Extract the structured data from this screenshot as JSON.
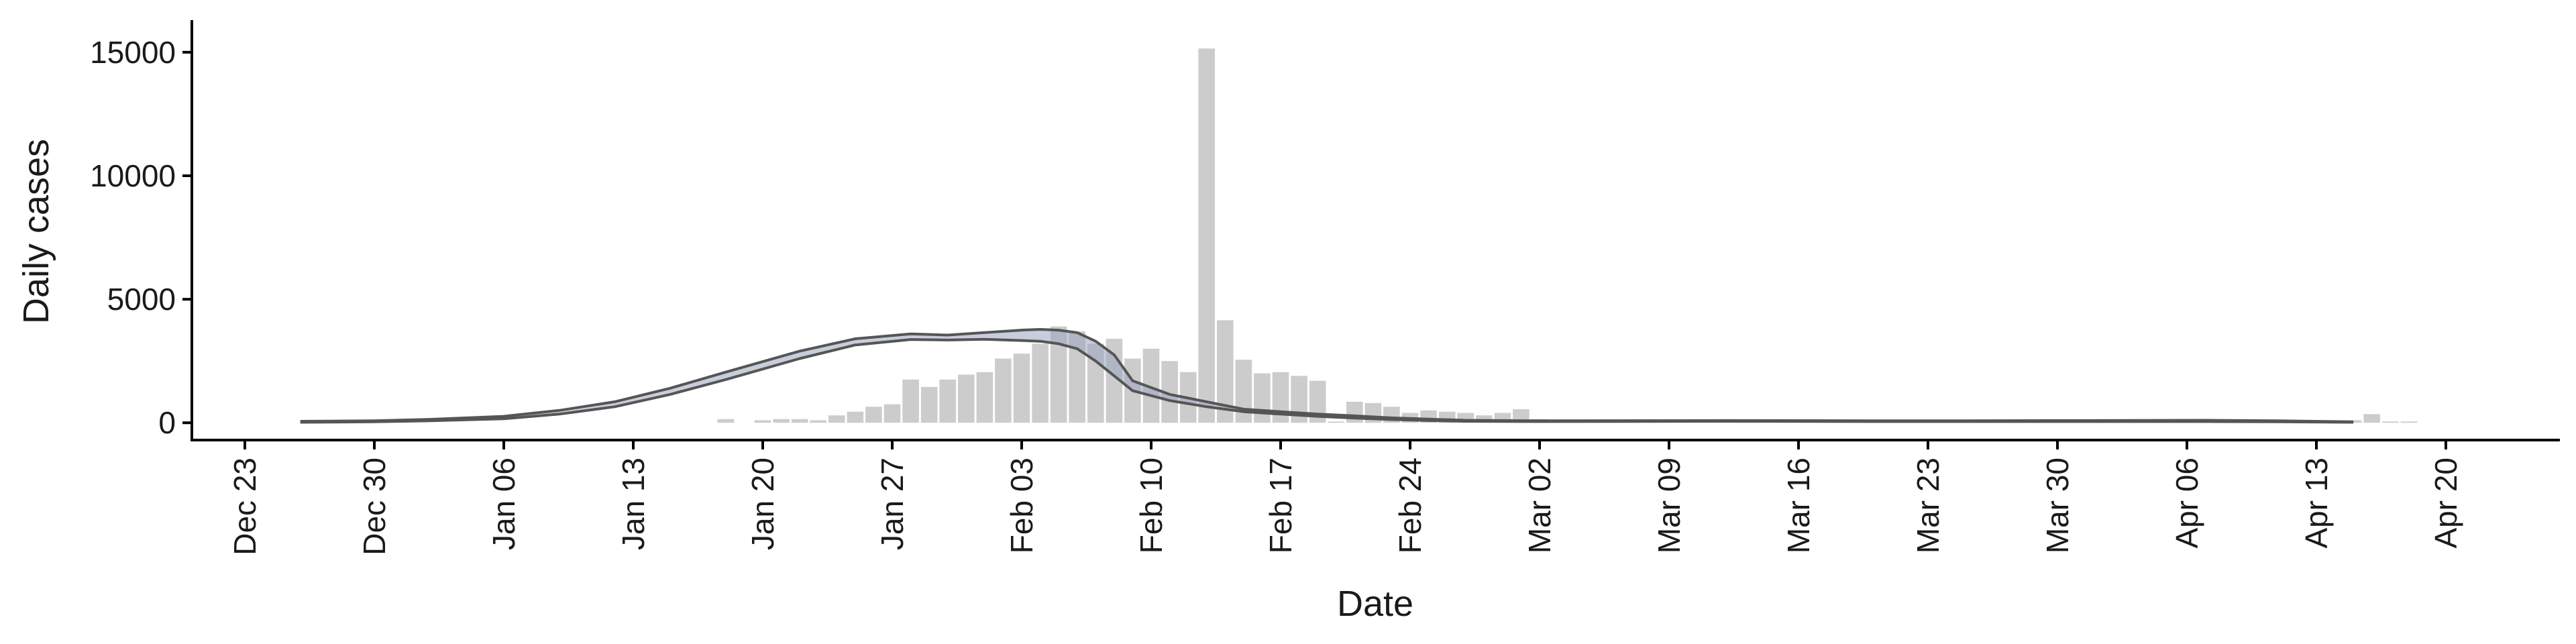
{
  "chart_data": {
    "type": "bar",
    "title": "",
    "xlabel": "Date",
    "ylabel": "Daily cases",
    "ylim": [
      -700,
      16300
    ],
    "yticks": [
      0,
      5000,
      10000,
      15000
    ],
    "ytick_labels": [
      "0",
      "5000",
      "10000",
      "15000"
    ],
    "xlim_days": [
      -4,
      111
    ],
    "x_tick_days": [
      0,
      7,
      14,
      21,
      28,
      35,
      42,
      49,
      56,
      63,
      70,
      77,
      84,
      91,
      98,
      105,
      112,
      119
    ],
    "x_tick_labels": [
      "Dec 23",
      "Dec 30",
      "Jan 06",
      "Jan 13",
      "Jan 20",
      "Jan 27",
      "Feb 03",
      "Feb 10",
      "Feb 17",
      "Feb 24",
      "Mar 02",
      "Mar 09",
      "Mar 16",
      "Mar 23",
      "Mar 30",
      "Apr 06",
      "Apr 13",
      "Apr 20"
    ],
    "grid": false,
    "bar_color": "#cccccc",
    "band_color": "#9aa4bf",
    "line_color": "#555555",
    "daily_cases": {
      "day_offsets": [
        26,
        27,
        28,
        29,
        30,
        31,
        32,
        33,
        34,
        35,
        36,
        37,
        38,
        39,
        40,
        41,
        42,
        43,
        44,
        45,
        46,
        47,
        48,
        49,
        50,
        51,
        52,
        53,
        54,
        55,
        56,
        57,
        58,
        59,
        60,
        61,
        62,
        63,
        64,
        65,
        66,
        67,
        68,
        69,
        70,
        71,
        72,
        73,
        74,
        75,
        76,
        77,
        78,
        79,
        80,
        81,
        82,
        83,
        84,
        85,
        86,
        87,
        88,
        89,
        90,
        91,
        92,
        93,
        94,
        95,
        96,
        97,
        98,
        99,
        100,
        101,
        102,
        103,
        104,
        105,
        106,
        107,
        108,
        109,
        110,
        111,
        112,
        113,
        114,
        115,
        116,
        117
      ],
      "values": [
        150,
        0,
        100,
        150,
        150,
        100,
        300,
        450,
        650,
        750,
        1750,
        1450,
        1750,
        1950,
        2050,
        2600,
        2800,
        3200,
        3900,
        3700,
        3200,
        3400,
        2600,
        3000,
        2500,
        2050,
        15150,
        4150,
        2550,
        2000,
        2050,
        1900,
        1700,
        50,
        850,
        800,
        650,
        400,
        500,
        450,
        400,
        300,
        400,
        550,
        150,
        50,
        50,
        50,
        100,
        50,
        100,
        50,
        50,
        50,
        50,
        50,
        50,
        50,
        50,
        50,
        50,
        50,
        50,
        50,
        50,
        50,
        50,
        50,
        50,
        50,
        50,
        50,
        50,
        50,
        50,
        50,
        50,
        50,
        50,
        100,
        100,
        100,
        100,
        100,
        100,
        100,
        100,
        100,
        100,
        350,
        50,
        50
      ]
    },
    "estimate": {
      "day_offsets": [
        3,
        7,
        10,
        14,
        17,
        20,
        23,
        26,
        30,
        33,
        36,
        38,
        40,
        42,
        43,
        44,
        45,
        46,
        47,
        48,
        50,
        52,
        54,
        56,
        58,
        60,
        62,
        64,
        66,
        70,
        80,
        90,
        100,
        106,
        110,
        114
      ],
      "lower": [
        20,
        40,
        80,
        160,
        350,
        650,
        1150,
        1750,
        2600,
        3150,
        3370,
        3350,
        3380,
        3330,
        3300,
        3200,
        3000,
        2500,
        1900,
        1300,
        900,
        650,
        450,
        350,
        260,
        190,
        130,
        90,
        60,
        50,
        60,
        50,
        50,
        50,
        40,
        20
      ],
      "upper": [
        60,
        80,
        140,
        260,
        500,
        850,
        1400,
        2050,
        2900,
        3400,
        3600,
        3550,
        3650,
        3750,
        3780,
        3750,
        3650,
        3300,
        2750,
        1700,
        1150,
        850,
        550,
        450,
        350,
        280,
        200,
        150,
        100,
        80,
        90,
        80,
        90,
        100,
        80,
        40
      ]
    }
  }
}
